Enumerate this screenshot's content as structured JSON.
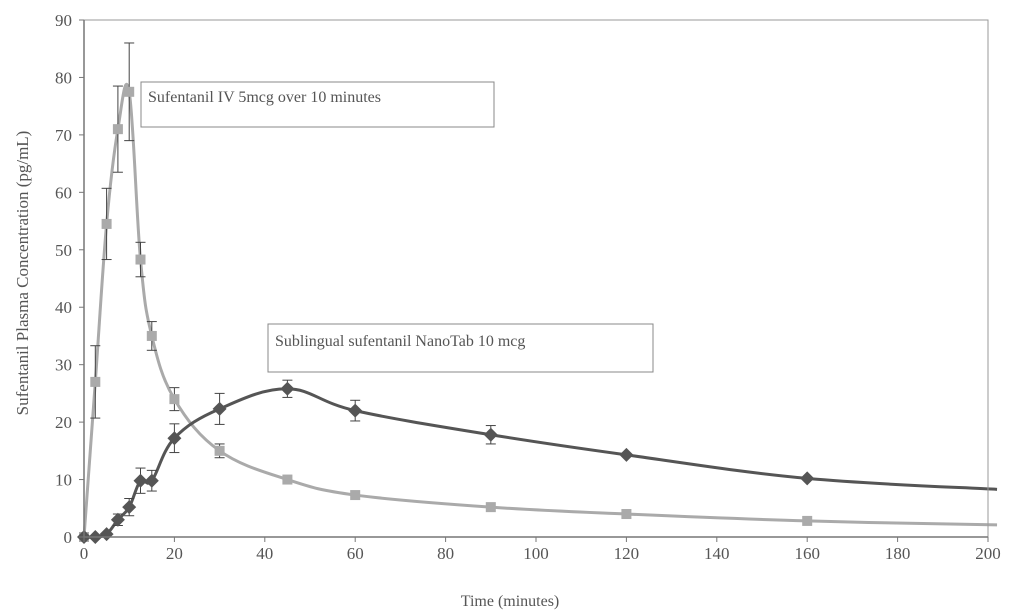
{
  "chart_data": {
    "type": "line",
    "title": "",
    "xlabel": "Time (minutes)",
    "ylabel": "Sufentanil  Plasma Concentration (pg/mL)",
    "xlim": [
      0,
      200
    ],
    "ylim": [
      0,
      90
    ],
    "x_ticks": [
      "0",
      "20",
      "40",
      "60",
      "80",
      "100",
      "120",
      "140",
      "160",
      "180",
      "200"
    ],
    "y_ticks": [
      "0",
      "10",
      "20",
      "30",
      "40",
      "50",
      "60",
      "70",
      "80",
      "90"
    ],
    "grid": false,
    "legend": "none",
    "series": [
      {
        "name": "Sufentanil IV 5mcg over 10 minutes",
        "marker": "square",
        "color": "#aaaaaa",
        "points": [
          {
            "x": 0,
            "y": 0,
            "err": 0
          },
          {
            "x": 2.5,
            "y": 27,
            "err": 6.3
          },
          {
            "x": 5,
            "y": 54.5,
            "err": 6.2
          },
          {
            "x": 7.5,
            "y": 71,
            "err": 7.5
          },
          {
            "x": 10,
            "y": 77.5,
            "err": 8.5
          },
          {
            "x": 12.5,
            "y": 48.3,
            "err": 3
          },
          {
            "x": 15,
            "y": 35,
            "err": 2.5
          },
          {
            "x": 20,
            "y": 24,
            "err": 2
          },
          {
            "x": 30,
            "y": 15,
            "err": 1.2
          },
          {
            "x": 45,
            "y": 10,
            "err": 0
          },
          {
            "x": 60,
            "y": 7.3,
            "err": 0
          },
          {
            "x": 90,
            "y": 5.2,
            "err": 0
          },
          {
            "x": 120,
            "y": 4,
            "err": 0
          },
          {
            "x": 160,
            "y": 2.8,
            "err": 0
          }
        ],
        "curve_end": {
          "x": 202,
          "y": 2.1
        }
      },
      {
        "name": "Sublingual sufentanil NanoTab 10 mcg",
        "marker": "diamond",
        "color": "#555555",
        "points": [
          {
            "x": 0,
            "y": 0,
            "err": 0
          },
          {
            "x": 2.5,
            "y": 0,
            "err": 0
          },
          {
            "x": 5,
            "y": 0.5,
            "err": 0
          },
          {
            "x": 7.5,
            "y": 3,
            "err": 1
          },
          {
            "x": 10,
            "y": 5.2,
            "err": 1.5
          },
          {
            "x": 12.5,
            "y": 9.8,
            "err": 2.2
          },
          {
            "x": 15,
            "y": 9.8,
            "err": 1.8
          },
          {
            "x": 20,
            "y": 17.2,
            "err": 2.5
          },
          {
            "x": 30,
            "y": 22.3,
            "err": 2.7
          },
          {
            "x": 45,
            "y": 25.8,
            "err": 1.5
          },
          {
            "x": 60,
            "y": 22,
            "err": 1.8
          },
          {
            "x": 90,
            "y": 17.8,
            "err": 1.6
          },
          {
            "x": 120,
            "y": 14.3,
            "err": 0
          },
          {
            "x": 160,
            "y": 10.2,
            "err": 0
          }
        ],
        "curve_end": {
          "x": 202,
          "y": 8.3
        }
      }
    ],
    "annotations": [
      {
        "text": "Sufentanil IV 5mcg over 10 minutes",
        "series": 0
      },
      {
        "text": "Sublingual sufentanil NanoTab 10 mcg",
        "series": 1
      }
    ]
  }
}
